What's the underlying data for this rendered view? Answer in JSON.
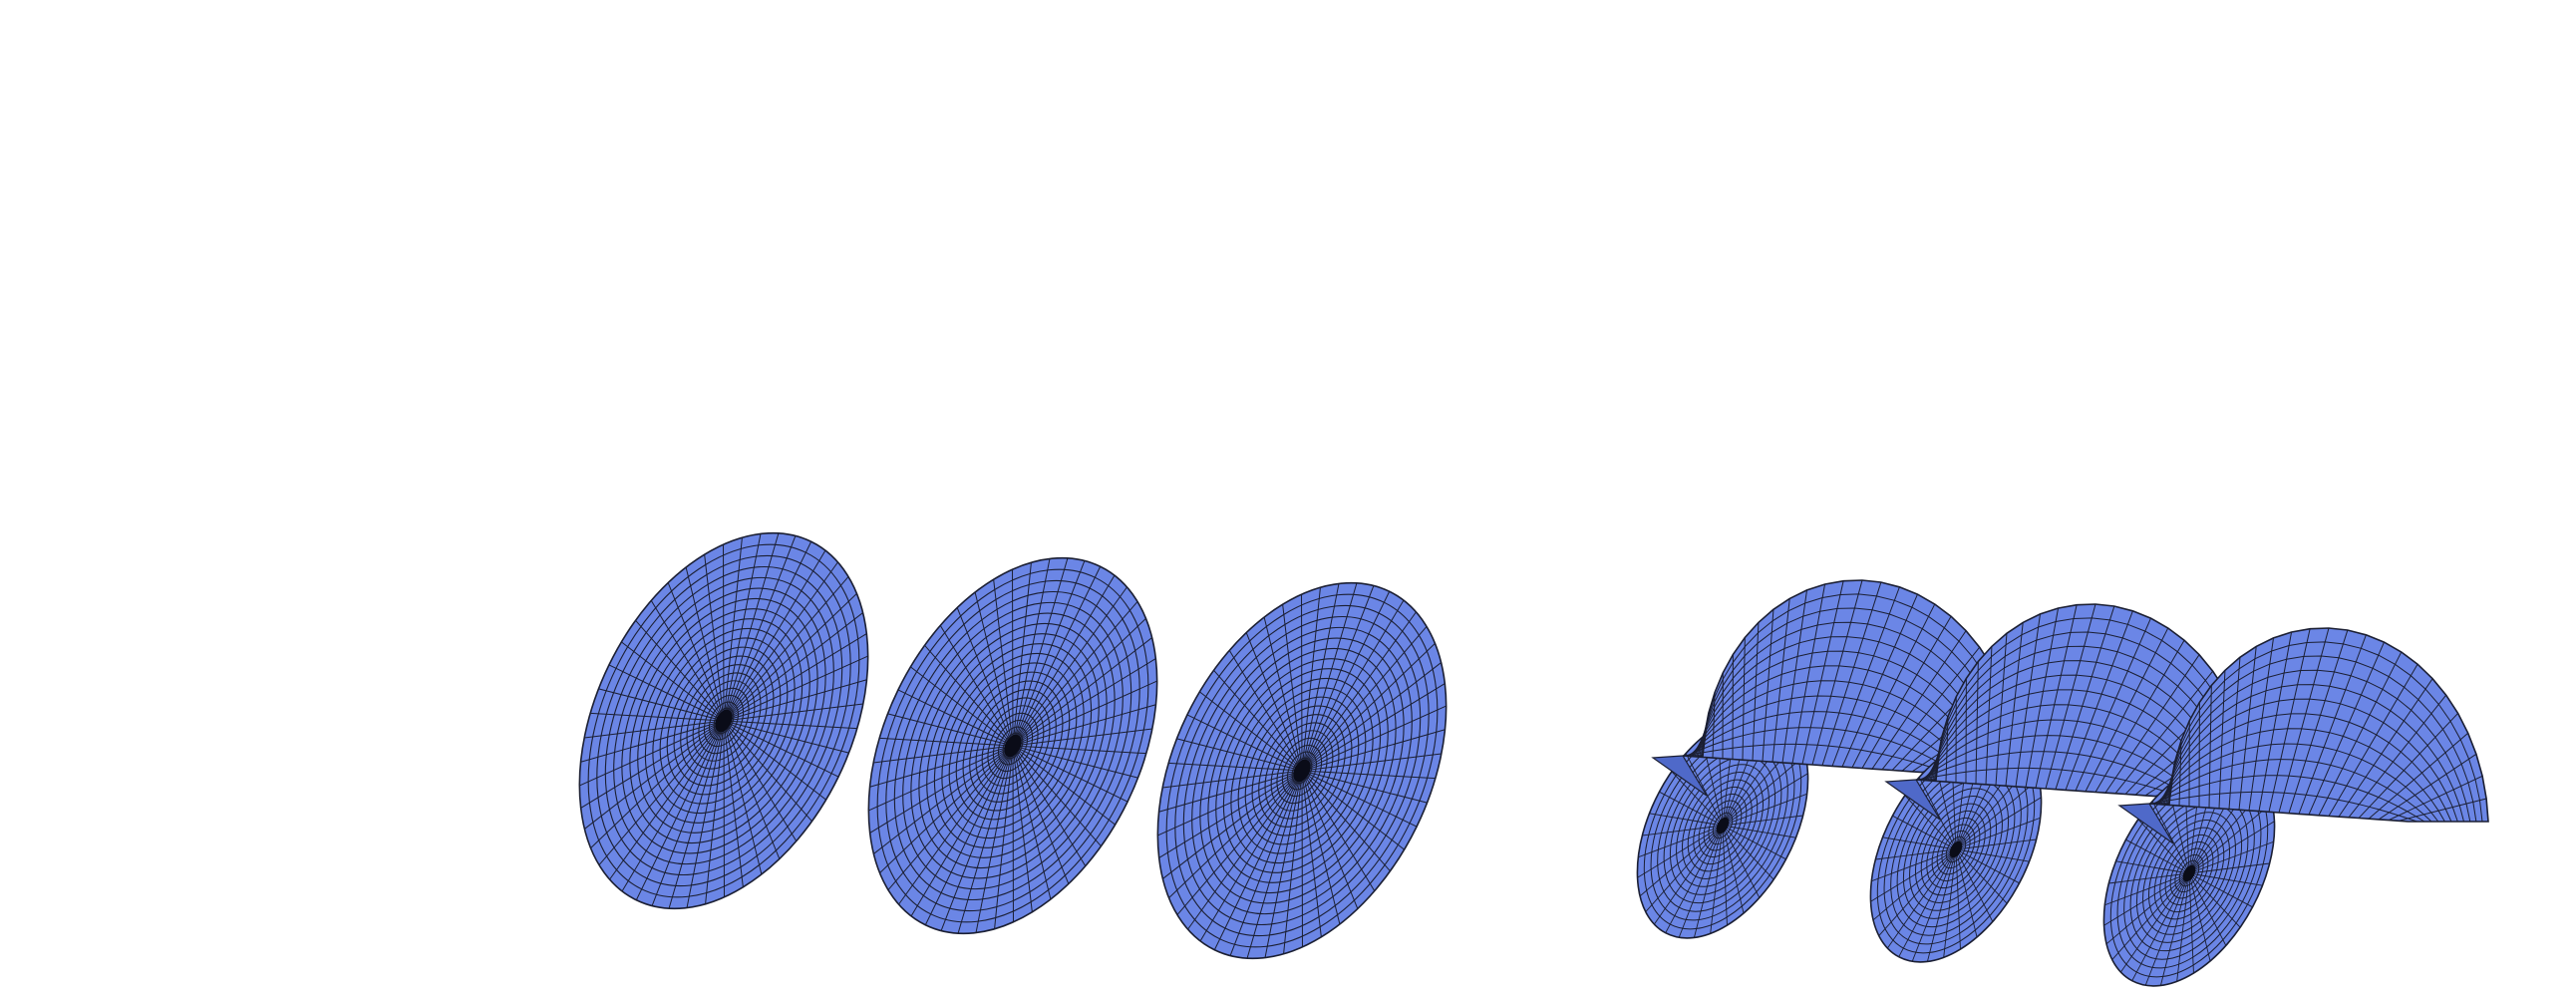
{
  "figure": {
    "background": "#ffffff",
    "surface_fill": "#6b86e6",
    "surface_fill_dark": "#4f69c9",
    "mesh_line": "#1b1f33",
    "core_color": "#0a0c18"
  },
  "groups": [
    {
      "name": "flat-disks",
      "surface": "disk",
      "count": 3
    },
    {
      "name": "helicoid-sheets",
      "surface": "helicoid",
      "count": 3
    }
  ]
}
